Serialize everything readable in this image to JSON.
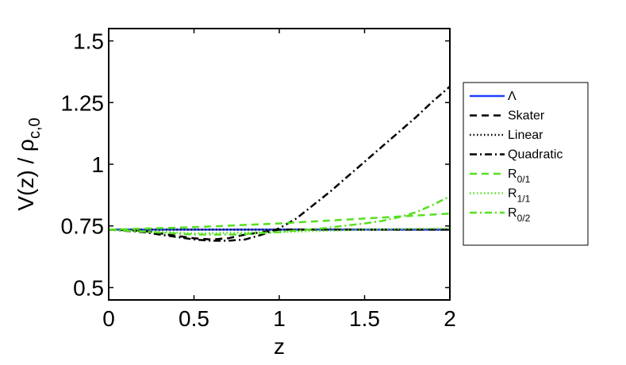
{
  "chart_data": {
    "type": "line",
    "title": "",
    "xlabel": "z",
    "ylabel": "V(z) / ρ",
    "ylabel_subscript": "c,0",
    "xlim": [
      0,
      2
    ],
    "ylim": [
      0.45,
      1.55
    ],
    "xticks": [
      0,
      0.5,
      1,
      1.5,
      2
    ],
    "xtick_labels": [
      "0",
      "0.5",
      "1",
      "1.5",
      "2"
    ],
    "yticks": [
      0.5,
      0.75,
      1,
      1.25,
      1.5
    ],
    "ytick_labels": [
      "0.5",
      "0.75",
      "1",
      "1.25",
      "1.5"
    ],
    "grid": false,
    "legend_position": "right, outside",
    "series": [
      {
        "name": "Λ",
        "name_main": "Λ",
        "name_sub": "",
        "color": "#1f3fff",
        "dash": "solid",
        "x": [
          0,
          0.5,
          1,
          1.5,
          2
        ],
        "y": [
          0.735,
          0.735,
          0.735,
          0.735,
          0.735
        ]
      },
      {
        "name": "Skater",
        "name_main": "Skater",
        "name_sub": "",
        "color": "#000000",
        "dash": "dashed",
        "x": [
          0,
          0.2,
          0.4,
          0.5,
          0.6,
          0.7,
          0.8,
          1,
          1.5,
          2
        ],
        "y": [
          0.735,
          0.73,
          0.71,
          0.7,
          0.695,
          0.7,
          0.715,
          0.735,
          0.735,
          0.735
        ]
      },
      {
        "name": "Linear",
        "name_main": "Linear",
        "name_sub": "",
        "color": "#000000",
        "dash": "dotted",
        "x": [
          0,
          0.5,
          1,
          1.5,
          2
        ],
        "y": [
          0.735,
          0.735,
          0.735,
          0.735,
          0.735
        ]
      },
      {
        "name": "Quadratic",
        "name_main": "Quadratic",
        "name_sub": "",
        "color": "#000000",
        "dash": "dashdot",
        "x": [
          0,
          0.2,
          0.4,
          0.5,
          0.6,
          0.7,
          0.8,
          0.9,
          1,
          1.1,
          1.2,
          1.3,
          1.4,
          1.5,
          1.6,
          1.7,
          1.8,
          1.9,
          2
        ],
        "y": [
          0.735,
          0.725,
          0.705,
          0.695,
          0.69,
          0.69,
          0.695,
          0.715,
          0.74,
          0.78,
          0.835,
          0.89,
          0.95,
          1.01,
          1.07,
          1.13,
          1.19,
          1.255,
          1.315
        ]
      },
      {
        "name": "R0/1",
        "name_main": "R",
        "name_sub": "0/1",
        "color": "#55e01f",
        "dash": "dashed",
        "x": [
          0,
          0.5,
          1,
          1.5,
          2
        ],
        "y": [
          0.735,
          0.745,
          0.76,
          0.78,
          0.8
        ]
      },
      {
        "name": "R1/1",
        "name_main": "R",
        "name_sub": "1/1",
        "color": "#55e01f",
        "dash": "dotted",
        "x": [
          0,
          0.5,
          1,
          1.5,
          2
        ],
        "y": [
          0.735,
          0.72,
          0.725,
          0.735,
          0.74
        ]
      },
      {
        "name": "R0/2",
        "name_main": "R",
        "name_sub": "0/2",
        "color": "#55e01f",
        "dash": "dashdot",
        "x": [
          0,
          0.25,
          0.5,
          0.75,
          1,
          1.25,
          1.5,
          1.6,
          1.7,
          1.8,
          1.9,
          2
        ],
        "y": [
          0.735,
          0.725,
          0.715,
          0.715,
          0.725,
          0.74,
          0.76,
          0.77,
          0.785,
          0.805,
          0.835,
          0.87
        ]
      }
    ]
  }
}
